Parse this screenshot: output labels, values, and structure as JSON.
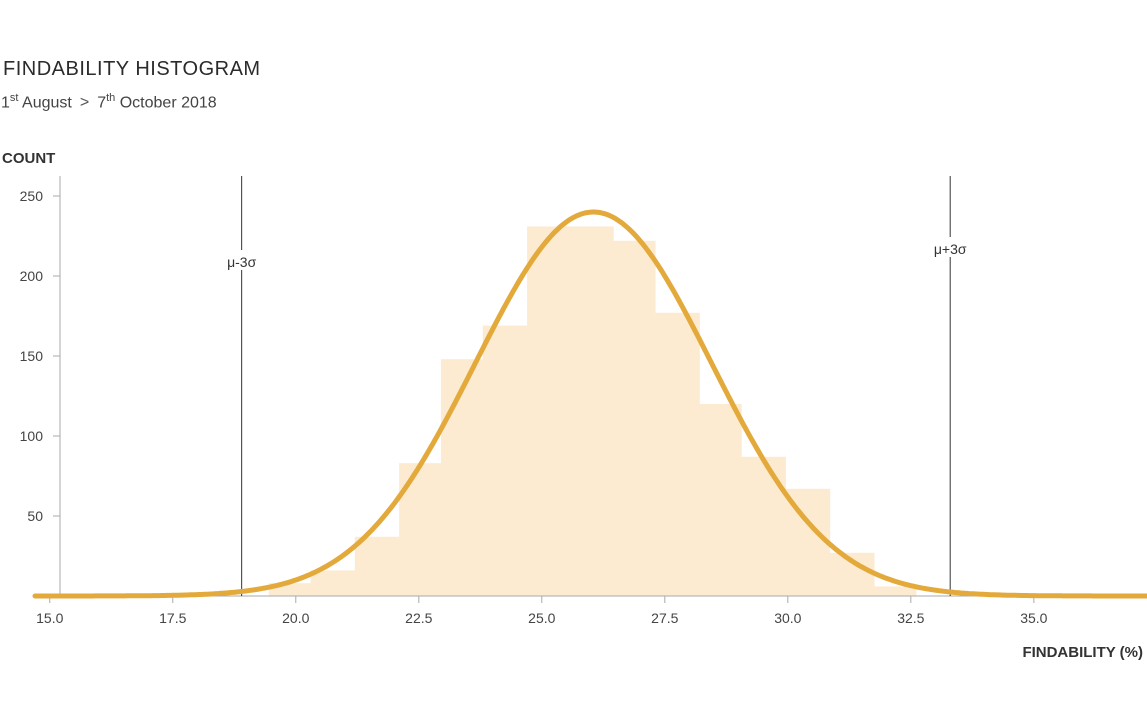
{
  "header": {
    "title": "FINDABILITY HISTOGRAM",
    "date_start_day": "1",
    "date_start_suffix": "st",
    "date_start_rest": " August",
    "separator": ">",
    "date_end_day": "7",
    "date_end_suffix": "th",
    "date_end_rest": " October 2018"
  },
  "chart_data": {
    "type": "bar",
    "xlabel": "FINDABILITY (%)",
    "ylabel": "COUNT",
    "xlim": [
      14.7,
      37.3
    ],
    "ylim": [
      0,
      265
    ],
    "x_ticks": [
      15.0,
      17.5,
      20.0,
      22.5,
      25.0,
      27.5,
      30.0,
      32.5,
      35.0
    ],
    "x_tick_labels": [
      "15.0",
      "17.5",
      "20.0",
      "22.5",
      "25.0",
      "27.5",
      "30.0",
      "32.5",
      "35.0"
    ],
    "y_ticks": [
      50,
      100,
      150,
      200,
      250
    ],
    "y_tick_labels": [
      "50",
      "100",
      "150",
      "200",
      "250"
    ],
    "grid": false,
    "bins": [
      {
        "x0": 19.45,
        "x1": 20.3,
        "count": 8
      },
      {
        "x0": 20.3,
        "x1": 21.2,
        "count": 16
      },
      {
        "x0": 21.2,
        "x1": 22.1,
        "count": 37
      },
      {
        "x0": 22.1,
        "x1": 22.95,
        "count": 83
      },
      {
        "x0": 22.95,
        "x1": 23.8,
        "count": 148
      },
      {
        "x0": 23.8,
        "x1": 24.7,
        "count": 169
      },
      {
        "x0": 24.7,
        "x1": 25.55,
        "count": 231
      },
      {
        "x0": 25.55,
        "x1": 26.45,
        "count": 231
      },
      {
        "x0": 26.45,
        "x1": 27.3,
        "count": 222
      },
      {
        "x0": 27.3,
        "x1": 28.2,
        "count": 177
      },
      {
        "x0": 28.2,
        "x1": 29.05,
        "count": 120
      },
      {
        "x0": 29.05,
        "x1": 29.95,
        "count": 87
      },
      {
        "x0": 29.95,
        "x1": 30.85,
        "count": 67
      },
      {
        "x0": 30.85,
        "x1": 31.75,
        "count": 27
      },
      {
        "x0": 31.75,
        "x1": 32.6,
        "count": 6
      }
    ],
    "normal_curve": {
      "mean": 26.05,
      "sigma": 2.4,
      "peak": 240
    },
    "reference_lines": [
      {
        "label": "μ-3σ",
        "x": 18.9
      },
      {
        "label": "μ+3σ",
        "x": 33.3
      }
    ],
    "colors": {
      "bars": "#fcebd1",
      "curve": "#e3a93b",
      "axis": "#aaaaaa",
      "reference_line": "#333333"
    }
  }
}
